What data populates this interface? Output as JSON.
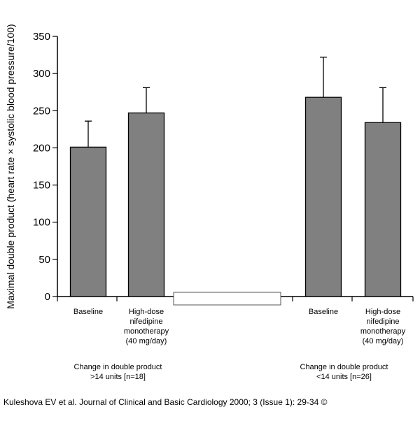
{
  "chart_data": {
    "type": "bar",
    "ylabel": "Maximal double product (heart rate × systolic blood pressure/100)",
    "ylim": [
      0,
      350
    ],
    "yticks": [
      0,
      50,
      100,
      150,
      200,
      250,
      300,
      350
    ],
    "grid": false,
    "groups": [
      {
        "label_lines": [
          "Change in double product",
          ">14 units [n=18]"
        ],
        "bars": [
          {
            "category_lines": [
              "Baseline"
            ],
            "value": 201,
            "error_upper": 236
          },
          {
            "category_lines": [
              "High-dose",
              "nifedipine",
              "monotherapy",
              "(40 mg/day)"
            ],
            "value": 247,
            "error_upper": 281
          }
        ]
      },
      {
        "label_lines": [
          "Change in double product",
          "<14 units [n=26]"
        ],
        "bars": [
          {
            "category_lines": [
              "Baseline"
            ],
            "value": 268,
            "error_upper": 322
          },
          {
            "category_lines": [
              "High-dose",
              "nifedipine",
              "monotherapy",
              "(40 mg/day)"
            ],
            "value": 234,
            "error_upper": 281
          }
        ]
      }
    ],
    "bar_color": "#808080"
  },
  "citation": "Kuleshova EV et al. Journal of Clinical and Basic Cardiology 2000; 3 (Issue 1): 29-34 ©"
}
